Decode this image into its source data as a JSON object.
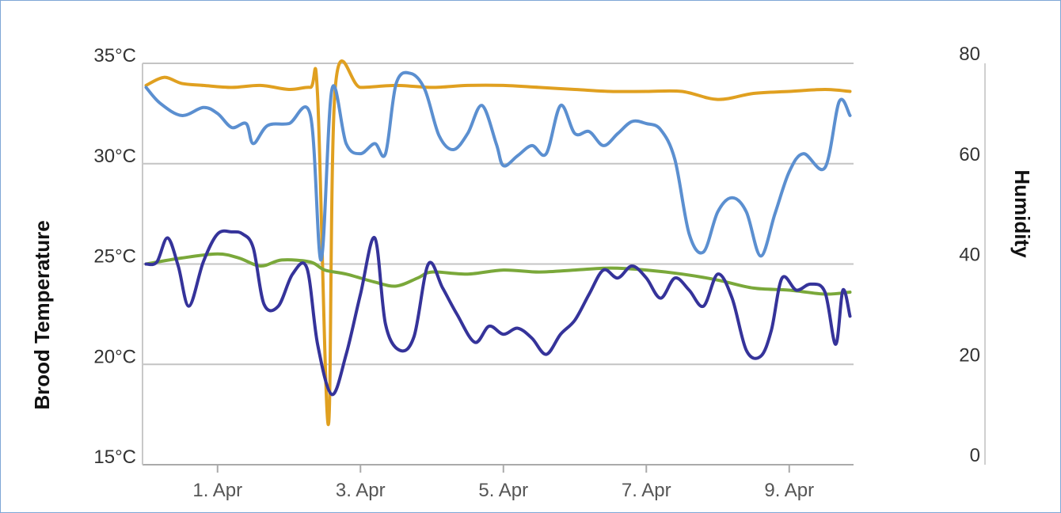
{
  "chart_data": {
    "type": "line",
    "title": "",
    "y_left": {
      "label": "Brood Temperature",
      "ticks": [
        "35°C",
        "30°C",
        "25°C",
        "20°C",
        "15°C"
      ],
      "tick_values": [
        35,
        30,
        25,
        20,
        15
      ],
      "range": [
        15,
        35
      ]
    },
    "y_right": {
      "label": "Humidity",
      "ticks": [
        "80",
        "60",
        "40",
        "20",
        "0"
      ],
      "tick_values": [
        80,
        60,
        40,
        20,
        0
      ],
      "range": [
        0,
        80
      ]
    },
    "x_axis": {
      "ticks": [
        "1. Apr",
        "3. Apr",
        "5. Apr",
        "7. Apr",
        "9. Apr"
      ],
      "tick_values": [
        1,
        3,
        5,
        7,
        9
      ],
      "range": [
        -0.05,
        9.9
      ],
      "unit": "day of April"
    },
    "grid": true,
    "legend": "none",
    "series": [
      {
        "axis": "left",
        "color": "#e0a020",
        "points": [
          [
            0,
            33.9
          ],
          [
            0.25,
            34.3
          ],
          [
            0.5,
            34.0
          ],
          [
            0.8,
            33.9
          ],
          [
            1.2,
            33.8
          ],
          [
            1.6,
            33.9
          ],
          [
            2.0,
            33.7
          ],
          [
            2.3,
            33.8
          ],
          [
            2.4,
            33.4
          ],
          [
            2.55,
            17.0
          ],
          [
            2.65,
            33.9
          ],
          [
            3.0,
            33.8
          ],
          [
            3.5,
            33.9
          ],
          [
            4.0,
            33.8
          ],
          [
            4.5,
            33.9
          ],
          [
            5.0,
            33.9
          ],
          [
            5.5,
            33.8
          ],
          [
            6.0,
            33.7
          ],
          [
            6.5,
            33.6
          ],
          [
            7.0,
            33.6
          ],
          [
            7.5,
            33.6
          ],
          [
            8.0,
            33.2
          ],
          [
            8.5,
            33.5
          ],
          [
            9.0,
            33.6
          ],
          [
            9.5,
            33.7
          ],
          [
            9.85,
            33.6
          ]
        ]
      },
      {
        "axis": "left",
        "color": "#5b8fd0",
        "points": [
          [
            0,
            33.8
          ],
          [
            0.2,
            33.0
          ],
          [
            0.5,
            32.4
          ],
          [
            0.8,
            32.8
          ],
          [
            1.0,
            32.5
          ],
          [
            1.2,
            31.8
          ],
          [
            1.4,
            32.0
          ],
          [
            1.5,
            31.0
          ],
          [
            1.7,
            31.9
          ],
          [
            2.0,
            32.0
          ],
          [
            2.3,
            32.4
          ],
          [
            2.45,
            25.2
          ],
          [
            2.6,
            33.7
          ],
          [
            2.8,
            31.0
          ],
          [
            3.0,
            30.5
          ],
          [
            3.2,
            31.0
          ],
          [
            3.35,
            30.5
          ],
          [
            3.5,
            34.0
          ],
          [
            3.7,
            34.5
          ],
          [
            3.9,
            33.7
          ],
          [
            4.1,
            31.4
          ],
          [
            4.3,
            30.7
          ],
          [
            4.5,
            31.5
          ],
          [
            4.7,
            32.9
          ],
          [
            4.9,
            31.0
          ],
          [
            5.0,
            29.9
          ],
          [
            5.2,
            30.4
          ],
          [
            5.4,
            30.9
          ],
          [
            5.6,
            30.5
          ],
          [
            5.8,
            32.9
          ],
          [
            6.0,
            31.5
          ],
          [
            6.2,
            31.6
          ],
          [
            6.4,
            30.9
          ],
          [
            6.6,
            31.5
          ],
          [
            6.8,
            32.1
          ],
          [
            7.0,
            32.0
          ],
          [
            7.2,
            31.7
          ],
          [
            7.4,
            30.2
          ],
          [
            7.6,
            26.5
          ],
          [
            7.8,
            25.6
          ],
          [
            8.0,
            27.6
          ],
          [
            8.2,
            28.3
          ],
          [
            8.4,
            27.6
          ],
          [
            8.6,
            25.4
          ],
          [
            8.8,
            27.5
          ],
          [
            9.0,
            29.6
          ],
          [
            9.2,
            30.5
          ],
          [
            9.5,
            29.8
          ],
          [
            9.7,
            33.1
          ],
          [
            9.85,
            32.4
          ]
        ]
      },
      {
        "axis": "left",
        "color": "#7aa83a",
        "points": [
          [
            0,
            25.0
          ],
          [
            0.5,
            25.3
          ],
          [
            1.0,
            25.5
          ],
          [
            1.3,
            25.3
          ],
          [
            1.6,
            24.9
          ],
          [
            1.9,
            25.2
          ],
          [
            2.3,
            25.1
          ],
          [
            2.5,
            24.7
          ],
          [
            2.8,
            24.5
          ],
          [
            3.2,
            24.1
          ],
          [
            3.5,
            23.9
          ],
          [
            3.8,
            24.3
          ],
          [
            4.0,
            24.6
          ],
          [
            4.5,
            24.5
          ],
          [
            5.0,
            24.7
          ],
          [
            5.5,
            24.6
          ],
          [
            6.0,
            24.7
          ],
          [
            6.5,
            24.8
          ],
          [
            7.0,
            24.7
          ],
          [
            7.5,
            24.5
          ],
          [
            8.0,
            24.2
          ],
          [
            8.5,
            23.8
          ],
          [
            9.0,
            23.7
          ],
          [
            9.5,
            23.5
          ],
          [
            9.85,
            23.6
          ]
        ]
      },
      {
        "axis": "left",
        "color": "#35339a",
        "points": [
          [
            0,
            25.0
          ],
          [
            0.15,
            25.1
          ],
          [
            0.3,
            26.3
          ],
          [
            0.45,
            24.9
          ],
          [
            0.6,
            22.9
          ],
          [
            0.8,
            25.1
          ],
          [
            1.0,
            26.5
          ],
          [
            1.2,
            26.6
          ],
          [
            1.35,
            26.5
          ],
          [
            1.5,
            25.8
          ],
          [
            1.65,
            23.0
          ],
          [
            1.85,
            22.9
          ],
          [
            2.05,
            24.5
          ],
          [
            2.25,
            24.8
          ],
          [
            2.4,
            21.0
          ],
          [
            2.6,
            18.5
          ],
          [
            2.8,
            20.5
          ],
          [
            3.0,
            23.5
          ],
          [
            3.2,
            26.3
          ],
          [
            3.35,
            22.0
          ],
          [
            3.55,
            20.7
          ],
          [
            3.75,
            21.4
          ],
          [
            3.95,
            25.0
          ],
          [
            4.15,
            23.8
          ],
          [
            4.35,
            22.5
          ],
          [
            4.6,
            21.1
          ],
          [
            4.8,
            21.9
          ],
          [
            5.0,
            21.5
          ],
          [
            5.2,
            21.8
          ],
          [
            5.4,
            21.3
          ],
          [
            5.6,
            20.5
          ],
          [
            5.8,
            21.5
          ],
          [
            6.0,
            22.2
          ],
          [
            6.2,
            23.5
          ],
          [
            6.4,
            24.7
          ],
          [
            6.6,
            24.3
          ],
          [
            6.8,
            24.9
          ],
          [
            7.0,
            24.3
          ],
          [
            7.2,
            23.3
          ],
          [
            7.4,
            24.3
          ],
          [
            7.6,
            23.7
          ],
          [
            7.8,
            22.9
          ],
          [
            8.0,
            24.5
          ],
          [
            8.2,
            23.3
          ],
          [
            8.4,
            20.7
          ],
          [
            8.6,
            20.4
          ],
          [
            8.75,
            21.7
          ],
          [
            8.9,
            24.3
          ],
          [
            9.1,
            23.7
          ],
          [
            9.3,
            24.0
          ],
          [
            9.5,
            23.6
          ],
          [
            9.65,
            21.0
          ],
          [
            9.75,
            23.7
          ],
          [
            9.85,
            22.4
          ]
        ]
      }
    ]
  }
}
